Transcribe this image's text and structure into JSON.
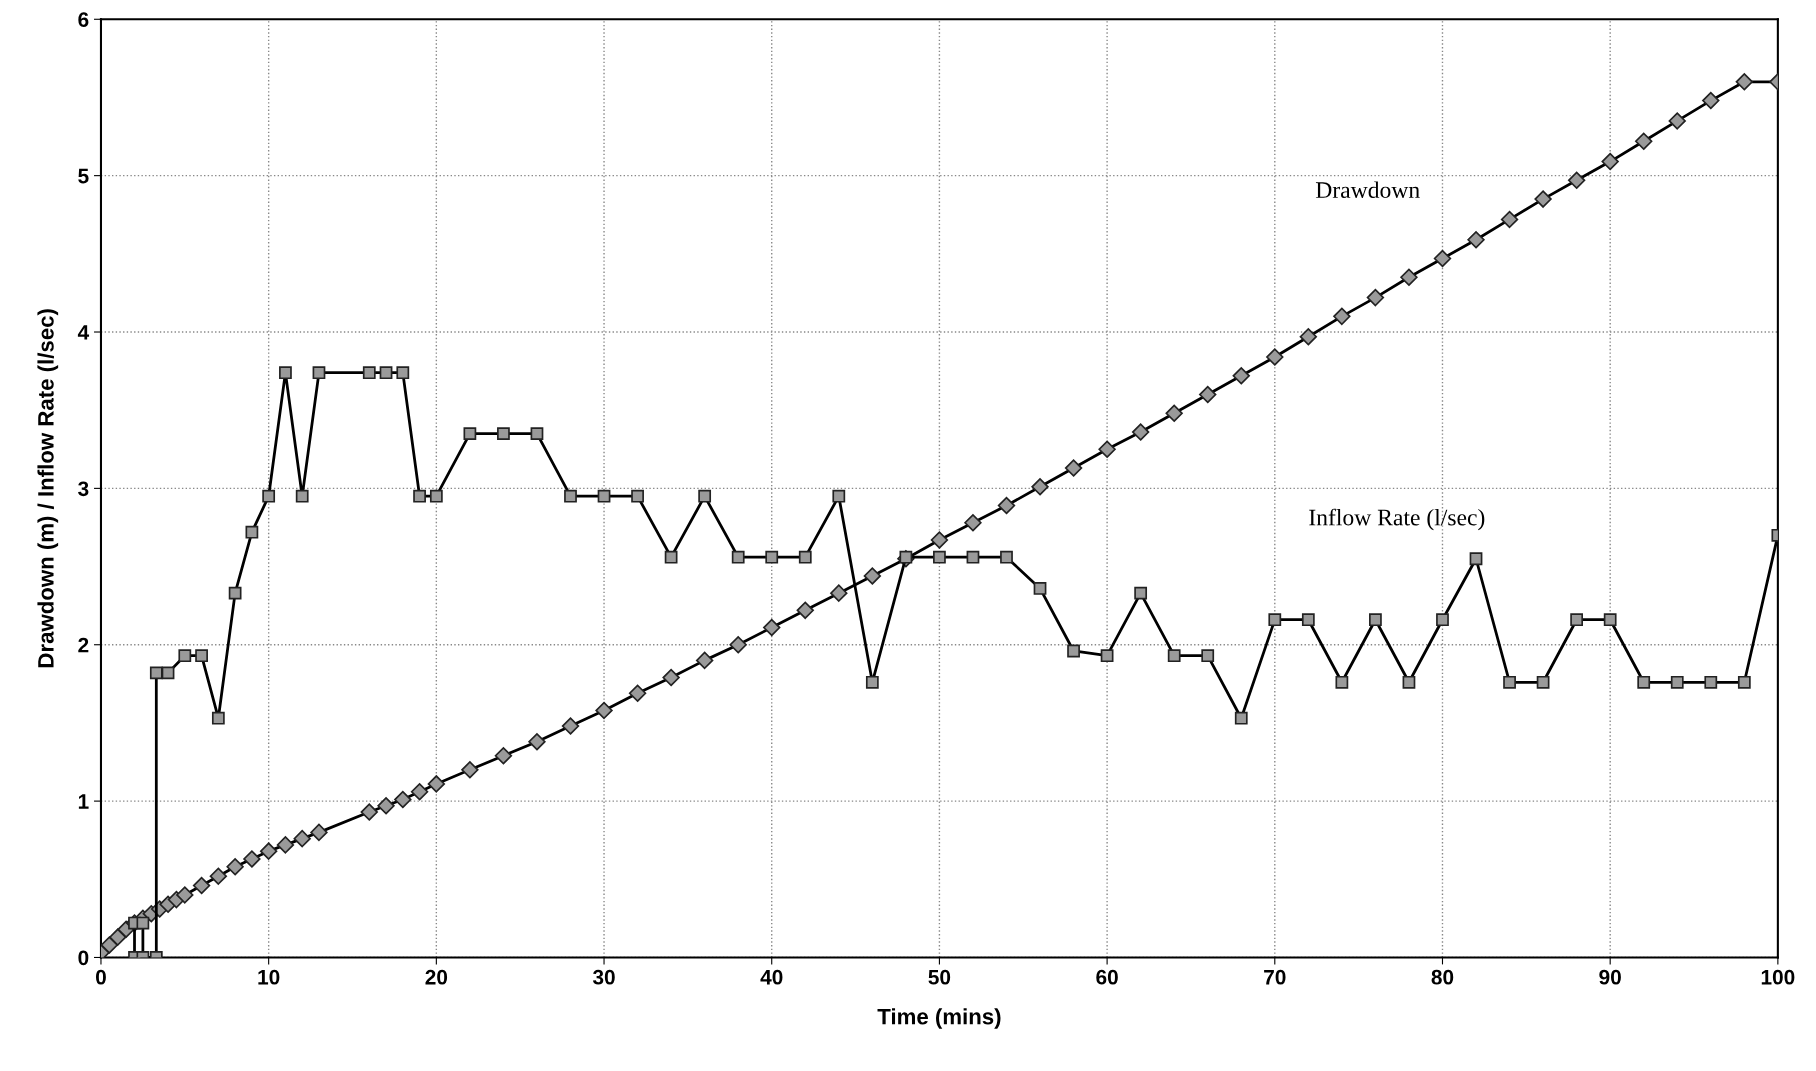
{
  "chart_data": {
    "type": "line",
    "xlabel": "Time (mins)",
    "ylabel": "Drawdown (m) / Inflow Rate (l/sec)",
    "xlim": [
      0,
      100
    ],
    "xticks": [
      0,
      10,
      20,
      30,
      40,
      50,
      60,
      70,
      80,
      90,
      100
    ],
    "ylim": [
      0,
      6
    ],
    "yticks": [
      0,
      1,
      2,
      3,
      4,
      5,
      6
    ],
    "grid": true,
    "series": [
      {
        "name": "Drawdown",
        "color": "#000000",
        "marker": "diamond",
        "x": [
          0,
          0.5,
          1,
          1.5,
          2,
          2.5,
          3,
          3.5,
          4,
          4.5,
          5,
          6,
          7,
          8,
          9,
          10,
          11,
          12,
          13,
          16,
          17,
          18,
          19,
          20,
          22,
          24,
          26,
          28,
          30,
          32,
          34,
          36,
          38,
          40,
          42,
          44,
          46,
          48,
          50,
          52,
          54,
          56,
          58,
          60,
          62,
          64,
          66,
          68,
          70,
          72,
          74,
          76,
          78,
          80,
          82,
          84,
          86,
          88,
          90,
          92,
          94,
          96,
          98,
          100
        ],
        "values": [
          0.03,
          0.08,
          0.13,
          0.18,
          0.22,
          0.25,
          0.28,
          0.31,
          0.34,
          0.37,
          0.4,
          0.46,
          0.52,
          0.58,
          0.63,
          0.68,
          0.72,
          0.76,
          0.8,
          0.93,
          0.97,
          1.01,
          1.06,
          1.11,
          1.2,
          1.29,
          1.38,
          1.48,
          1.58,
          1.69,
          1.79,
          1.9,
          2.0,
          2.11,
          2.22,
          2.33,
          2.44,
          2.55,
          2.67,
          2.78,
          2.89,
          3.01,
          3.13,
          3.25,
          3.36,
          3.48,
          3.6,
          3.72,
          3.84,
          3.97,
          4.1,
          4.22,
          4.35,
          4.47,
          4.59,
          4.72,
          4.85,
          4.97,
          5.09,
          5.22,
          5.35,
          5.48,
          5.6,
          5.6
        ]
      },
      {
        "name": "Inflow Rate (l/sec)",
        "color": "#000000",
        "marker": "square",
        "x": [
          2,
          2,
          2.5,
          2.5,
          3.3,
          3.3,
          4,
          5,
          6,
          7,
          8,
          9,
          10,
          11,
          12,
          13,
          16,
          17,
          18,
          19,
          20,
          22,
          24,
          26,
          28,
          30,
          32,
          34,
          36,
          38,
          40,
          42,
          44,
          46,
          48,
          50,
          52,
          54,
          56,
          58,
          60,
          62,
          64,
          66,
          68,
          70,
          72,
          74,
          76,
          78,
          80,
          82,
          84,
          86,
          88,
          90,
          92,
          94,
          96,
          98,
          100
        ],
        "values": [
          0,
          0.22,
          0.22,
          0,
          0,
          1.82,
          1.82,
          1.93,
          1.93,
          1.53,
          2.33,
          2.72,
          2.95,
          3.74,
          2.95,
          3.74,
          3.74,
          3.74,
          3.74,
          2.95,
          2.95,
          3.35,
          3.35,
          3.35,
          2.95,
          2.95,
          2.95,
          2.56,
          2.95,
          2.56,
          2.56,
          2.56,
          2.95,
          1.76,
          2.56,
          2.56,
          2.56,
          2.56,
          2.36,
          1.96,
          1.93,
          2.33,
          1.93,
          1.93,
          1.53,
          2.16,
          2.16,
          1.76,
          2.16,
          1.76,
          2.16,
          2.55,
          1.76,
          1.76,
          2.16,
          2.16,
          1.76,
          1.76,
          1.76,
          1.76,
          2.7
        ]
      }
    ]
  }
}
